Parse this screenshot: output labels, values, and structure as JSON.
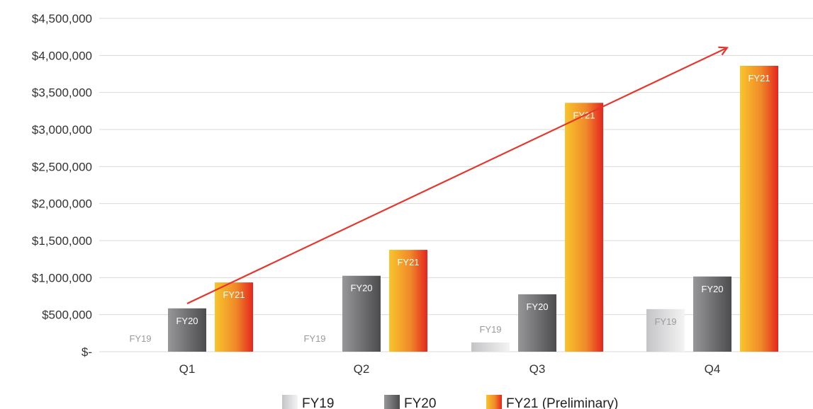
{
  "chart_data": {
    "type": "bar",
    "categories": [
      "Q1",
      "Q2",
      "Q3",
      "Q4"
    ],
    "series": [
      {
        "name": "FY19",
        "bar_label": "FY19",
        "values": [
          0,
          0,
          125000,
          575000
        ]
      },
      {
        "name": "FY20",
        "bar_label": "FY20",
        "values": [
          585000,
          1025000,
          775000,
          1015000
        ]
      },
      {
        "name": "FY21 (Preliminary)",
        "bar_label": "FY21",
        "values": [
          935000,
          1375000,
          3360000,
          3860000
        ]
      }
    ],
    "yticks": [
      "$-",
      "$500,000",
      "$1,000,000",
      "$1,500,000",
      "$2,000,000",
      "$2,500,000",
      "$3,000,000",
      "$3,500,000",
      "$4,000,000",
      "$4,500,000"
    ],
    "ylim": [
      0,
      4500000
    ],
    "grid": true,
    "legend_position": "bottom-center",
    "trend_arrow": {
      "from": {
        "category": "Q1",
        "value": 650000
      },
      "to": {
        "category": "Q4",
        "value": 4100000
      },
      "color": "#e8352c"
    },
    "colors": {
      "fy19": [
        "#c4c4c6",
        "#f4f4f5"
      ],
      "fy20": [
        "#8f8f91",
        "#4e4e50"
      ],
      "fy21": [
        "#f7c22c",
        "#e52a24"
      ],
      "grid": "#d9d9d9",
      "axis_text": "#333333"
    }
  }
}
